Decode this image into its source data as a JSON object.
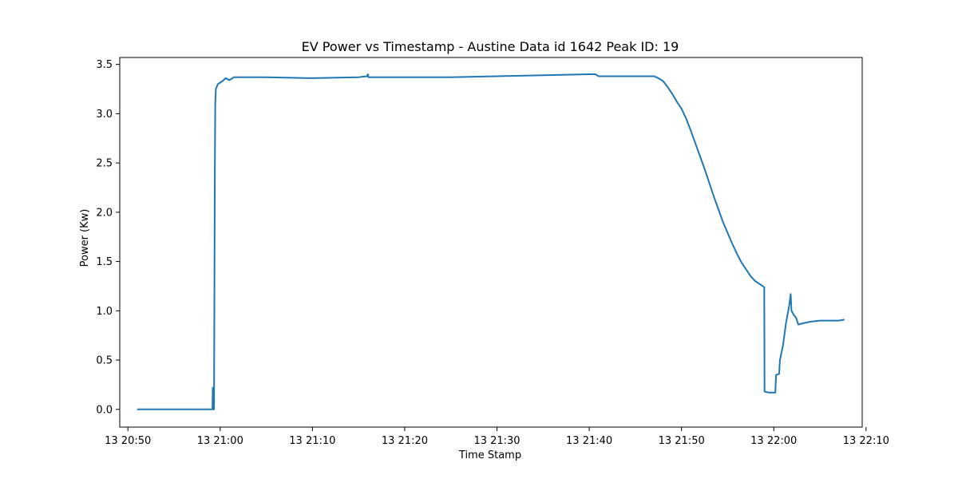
{
  "chart_data": {
    "type": "line",
    "title": "EV Power vs Timestamp - Austine Data id 1642 Peak ID: 19",
    "xlabel": "Time Stamp",
    "ylabel": "Power (Kw)",
    "xlim": [
      "13 20:49:07",
      "13 22:09:35"
    ],
    "ylim": [
      -0.18,
      3.57
    ],
    "x_ticks": [
      {
        "t": "13 20:50:00",
        "label": "13 20:50"
      },
      {
        "t": "13 21:00:00",
        "label": "13 21:00"
      },
      {
        "t": "13 21:10:00",
        "label": "13 21:10"
      },
      {
        "t": "13 21:20:00",
        "label": "13 21:20"
      },
      {
        "t": "13 21:30:00",
        "label": "13 21:30"
      },
      {
        "t": "13 21:40:00",
        "label": "13 21:40"
      },
      {
        "t": "13 21:50:00",
        "label": "13 21:50"
      },
      {
        "t": "13 22:00:00",
        "label": "13 22:00"
      },
      {
        "t": "13 22:10:00",
        "label": "13 22:10"
      }
    ],
    "y_ticks": [
      {
        "v": 0.0,
        "label": "0.0"
      },
      {
        "v": 0.5,
        "label": "0.5"
      },
      {
        "v": 1.0,
        "label": "1.0"
      },
      {
        "v": 1.5,
        "label": "1.5"
      },
      {
        "v": 2.0,
        "label": "2.0"
      },
      {
        "v": 2.5,
        "label": "2.5"
      },
      {
        "v": 3.0,
        "label": "3.0"
      },
      {
        "v": 3.5,
        "label": "3.5"
      }
    ],
    "grid": false,
    "line_color": "#1f77b4",
    "series": [
      {
        "points": [
          [
            "13 20:51:00",
            0.0
          ],
          [
            "13 20:55:00",
            0.0
          ],
          [
            "13 20:59:10",
            0.0
          ],
          [
            "13 20:59:12",
            0.22
          ],
          [
            "13 20:59:14",
            0.0
          ],
          [
            "13 20:59:20",
            0.0
          ],
          [
            "13 20:59:25",
            2.3
          ],
          [
            "13 20:59:28",
            3.1
          ],
          [
            "13 20:59:32",
            3.25
          ],
          [
            "13 20:59:45",
            3.3
          ],
          [
            "13 21:00:15",
            3.33
          ],
          [
            "13 21:00:35",
            3.36
          ],
          [
            "13 21:01:00",
            3.34
          ],
          [
            "13 21:01:30",
            3.37
          ],
          [
            "13 21:05:00",
            3.37
          ],
          [
            "13 21:10:00",
            3.36
          ],
          [
            "13 21:15:00",
            3.37
          ],
          [
            "13 21:15:55",
            3.38
          ],
          [
            "13 21:16:00",
            3.4
          ],
          [
            "13 21:16:05",
            3.37
          ],
          [
            "13 21:20:00",
            3.37
          ],
          [
            "13 21:25:00",
            3.37
          ],
          [
            "13 21:30:00",
            3.38
          ],
          [
            "13 21:35:00",
            3.39
          ],
          [
            "13 21:40:00",
            3.4
          ],
          [
            "13 21:40:40",
            3.4
          ],
          [
            "13 21:41:00",
            3.38
          ],
          [
            "13 21:45:00",
            3.38
          ],
          [
            "13 21:47:00",
            3.38
          ],
          [
            "13 21:47:30",
            3.36
          ],
          [
            "13 21:48:00",
            3.33
          ],
          [
            "13 21:48:30",
            3.27
          ],
          [
            "13 21:49:00",
            3.2
          ],
          [
            "13 21:49:30",
            3.12
          ],
          [
            "13 21:50:00",
            3.05
          ],
          [
            "13 21:50:30",
            2.95
          ],
          [
            "13 21:51:00",
            2.83
          ],
          [
            "13 21:51:30",
            2.7
          ],
          [
            "13 21:52:00",
            2.57
          ],
          [
            "13 21:52:30",
            2.44
          ],
          [
            "13 21:53:00",
            2.3
          ],
          [
            "13 21:53:30",
            2.16
          ],
          [
            "13 21:54:00",
            2.03
          ],
          [
            "13 21:54:30",
            1.9
          ],
          [
            "13 21:55:00",
            1.79
          ],
          [
            "13 21:55:30",
            1.68
          ],
          [
            "13 21:56:00",
            1.58
          ],
          [
            "13 21:56:30",
            1.49
          ],
          [
            "13 21:57:00",
            1.42
          ],
          [
            "13 21:57:30",
            1.35
          ],
          [
            "13 21:58:00",
            1.3
          ],
          [
            "13 21:58:30",
            1.27
          ],
          [
            "13 21:58:58",
            1.24
          ],
          [
            "13 21:59:00",
            0.18
          ],
          [
            "13 21:59:30",
            0.17
          ],
          [
            "13 22:00:10",
            0.17
          ],
          [
            "13 22:00:15",
            0.35
          ],
          [
            "13 22:00:35",
            0.36
          ],
          [
            "13 22:00:40",
            0.5
          ],
          [
            "13 22:01:00",
            0.65
          ],
          [
            "13 22:01:20",
            0.88
          ],
          [
            "13 22:01:40",
            1.05
          ],
          [
            "13 22:01:50",
            1.17
          ],
          [
            "13 22:01:55",
            1.0
          ],
          [
            "13 22:02:10",
            0.96
          ],
          [
            "13 22:02:25",
            0.93
          ],
          [
            "13 22:02:40",
            0.86
          ],
          [
            "13 22:03:00",
            0.87
          ],
          [
            "13 22:03:30",
            0.88
          ],
          [
            "13 22:04:00",
            0.89
          ],
          [
            "13 22:05:00",
            0.9
          ],
          [
            "13 22:06:00",
            0.9
          ],
          [
            "13 22:07:00",
            0.9
          ],
          [
            "13 22:07:40",
            0.91
          ]
        ]
      }
    ]
  }
}
